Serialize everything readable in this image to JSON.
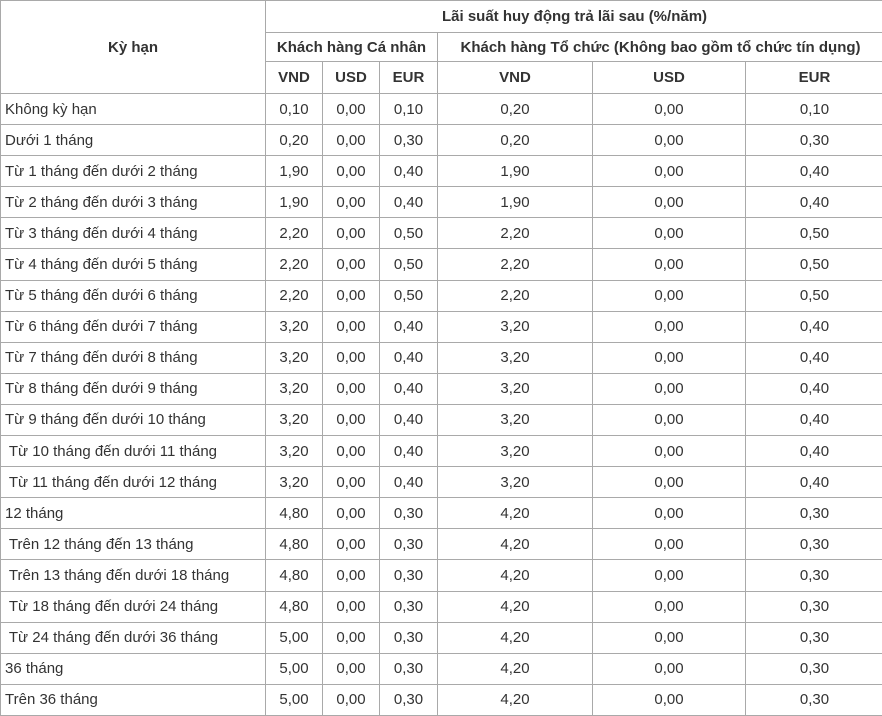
{
  "header": {
    "term": "Kỳ hạn",
    "group_title": "Lãi suất huy động trả lãi sau (%/năm)",
    "individual": "Khách hàng Cá nhân",
    "organization": "Khách hàng Tổ chức (Không bao gồm tổ chức tín dụng)",
    "currencies": [
      "VND",
      "USD",
      "EUR",
      "VND",
      "USD",
      "EUR"
    ]
  },
  "rows": [
    {
      "term": "Không kỳ hạn",
      "v": [
        "0,10",
        "0,00",
        "0,10",
        "0,20",
        "0,00",
        "0,10"
      ]
    },
    {
      "term": "Dưới 1 tháng",
      "v": [
        "0,20",
        "0,00",
        "0,30",
        "0,20",
        "0,00",
        "0,30"
      ]
    },
    {
      "term": "Từ 1 tháng đến dưới 2 tháng",
      "v": [
        "1,90",
        "0,00",
        "0,40",
        "1,90",
        "0,00",
        "0,40"
      ]
    },
    {
      "term": "Từ 2 tháng đến dưới 3 tháng",
      "v": [
        "1,90",
        "0,00",
        "0,40",
        "1,90",
        "0,00",
        "0,40"
      ]
    },
    {
      "term": "Từ 3 tháng đến dưới 4 tháng",
      "v": [
        "2,20",
        "0,00",
        "0,50",
        "2,20",
        "0,00",
        "0,50"
      ]
    },
    {
      "term": "Từ 4 tháng đến dưới 5 tháng",
      "v": [
        "2,20",
        "0,00",
        "0,50",
        "2,20",
        "0,00",
        "0,50"
      ]
    },
    {
      "term": "Từ 5 tháng đến dưới 6 tháng",
      "v": [
        "2,20",
        "0,00",
        "0,50",
        "2,20",
        "0,00",
        "0,50"
      ]
    },
    {
      "term": "Từ 6 tháng đến dưới 7 tháng",
      "v": [
        "3,20",
        "0,00",
        "0,40",
        "3,20",
        "0,00",
        "0,40"
      ]
    },
    {
      "term": "Từ 7 tháng đến dưới 8 tháng",
      "v": [
        "3,20",
        "0,00",
        "0,40",
        "3,20",
        "0,00",
        "0,40"
      ]
    },
    {
      "term": "Từ 8 tháng đến dưới 9 tháng",
      "v": [
        "3,20",
        "0,00",
        "0,40",
        "3,20",
        "0,00",
        "0,40"
      ]
    },
    {
      "term": "Từ 9 tháng đến dưới 10 tháng",
      "v": [
        "3,20",
        "0,00",
        "0,40",
        "3,20",
        "0,00",
        "0,40"
      ]
    },
    {
      "term": " Từ 10 tháng đến dưới 11 tháng",
      "v": [
        "3,20",
        "0,00",
        "0,40",
        "3,20",
        "0,00",
        "0,40"
      ]
    },
    {
      "term": " Từ 11 tháng đến dưới 12 tháng",
      "v": [
        "3,20",
        "0,00",
        "0,40",
        "3,20",
        "0,00",
        "0,40"
      ]
    },
    {
      "term": "12 tháng",
      "v": [
        "4,80",
        "0,00",
        "0,30",
        "4,20",
        "0,00",
        "0,30"
      ]
    },
    {
      "term": " Trên 12 tháng đến 13 tháng",
      "v": [
        "4,80",
        "0,00",
        "0,30",
        "4,20",
        "0,00",
        "0,30"
      ]
    },
    {
      "term": " Trên 13 tháng đến dưới 18 tháng",
      "v": [
        "4,80",
        "0,00",
        "0,30",
        "4,20",
        "0,00",
        "0,30"
      ]
    },
    {
      "term": " Từ 18 tháng đến dưới 24 tháng",
      "v": [
        "4,80",
        "0,00",
        "0,30",
        "4,20",
        "0,00",
        "0,30"
      ]
    },
    {
      "term": " Từ 24 tháng đến dưới 36 tháng",
      "v": [
        "5,00",
        "0,00",
        "0,30",
        "4,20",
        "0,00",
        "0,30"
      ]
    },
    {
      "term": "36 tháng",
      "v": [
        "5,00",
        "0,00",
        "0,30",
        "4,20",
        "0,00",
        "0,30"
      ]
    },
    {
      "term": "Trên 36 tháng",
      "v": [
        "5,00",
        "0,00",
        "0,30",
        "4,20",
        "0,00",
        "0,30"
      ]
    }
  ]
}
